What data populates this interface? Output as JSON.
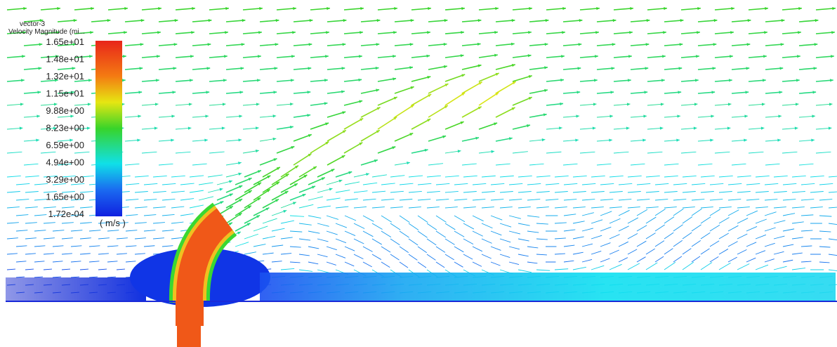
{
  "legend": {
    "title": "vector-3",
    "subtitle": "Velocity Magnitude (mi...",
    "labels": [
      "1.65e+01",
      "1.48e+01",
      "1.32e+01",
      "1.15e+01",
      "9.88e+00",
      "8.23e+00",
      "6.59e+00",
      "4.94e+00",
      "3.29e+00",
      "1.65e+00",
      "1.72e-04"
    ],
    "unit": "( m/s )"
  }
}
